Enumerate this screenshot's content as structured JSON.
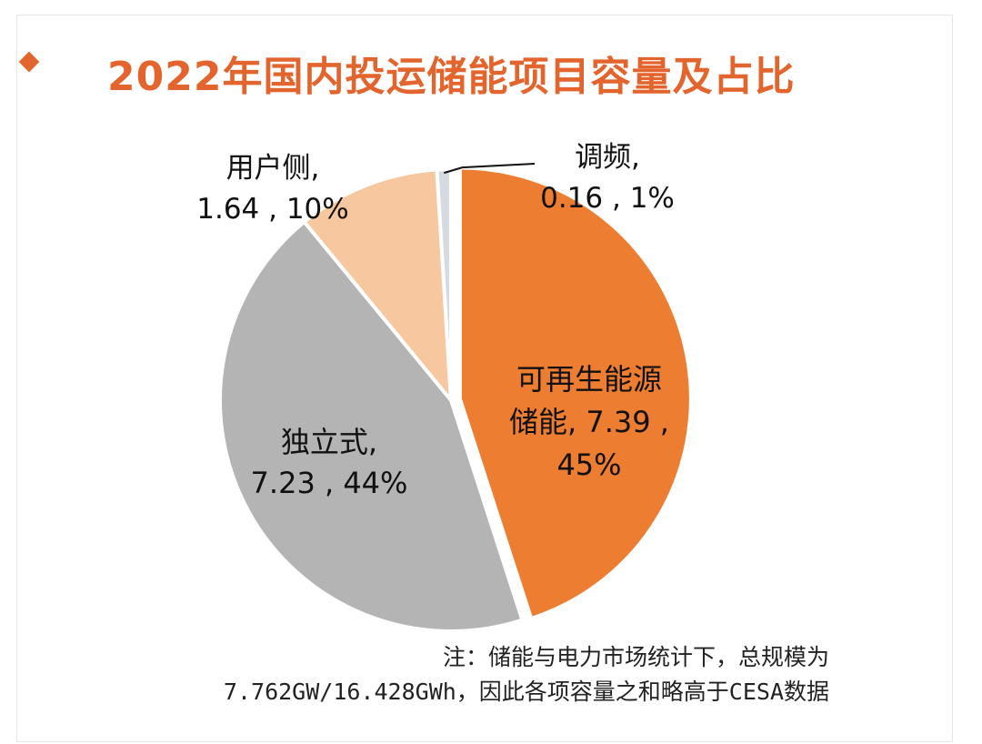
{
  "title": "2022年国内投运储能项目容量及占比",
  "accent_color": "#e3642d",
  "chart_data": {
    "type": "pie",
    "title": "2022年国内投运储能项目容量及占比",
    "start_angle_deg": 0,
    "direction": "clockwise",
    "slices": [
      {
        "label": "可再生能源储能",
        "value": 7.39,
        "percent": "45%",
        "color": "#ed7d31",
        "label_lines": [
          "可再生能源",
          "储能, 7.39 ,",
          "45%"
        ]
      },
      {
        "label": "独立式",
        "value": 7.23,
        "percent": "44%",
        "color": "#b4b4b4",
        "label_lines": [
          "独立式,",
          "7.23 , 44%"
        ]
      },
      {
        "label": "用户侧",
        "value": 1.64,
        "percent": "10%",
        "color": "#f7c7a0",
        "label_lines": [
          "用户侧,",
          "1.64 , 10%"
        ]
      },
      {
        "label": "调频",
        "value": 0.16,
        "percent": "1%",
        "color": "#d6dbe2",
        "label_lines": [
          "调频,",
          "0.16 , 1%"
        ]
      }
    ]
  },
  "note": {
    "line1": "注：储能与电力市场统计下，总规模为",
    "line2": "7.762GW/16.428GWh，因此各项容量之和略高于CESA数据"
  }
}
